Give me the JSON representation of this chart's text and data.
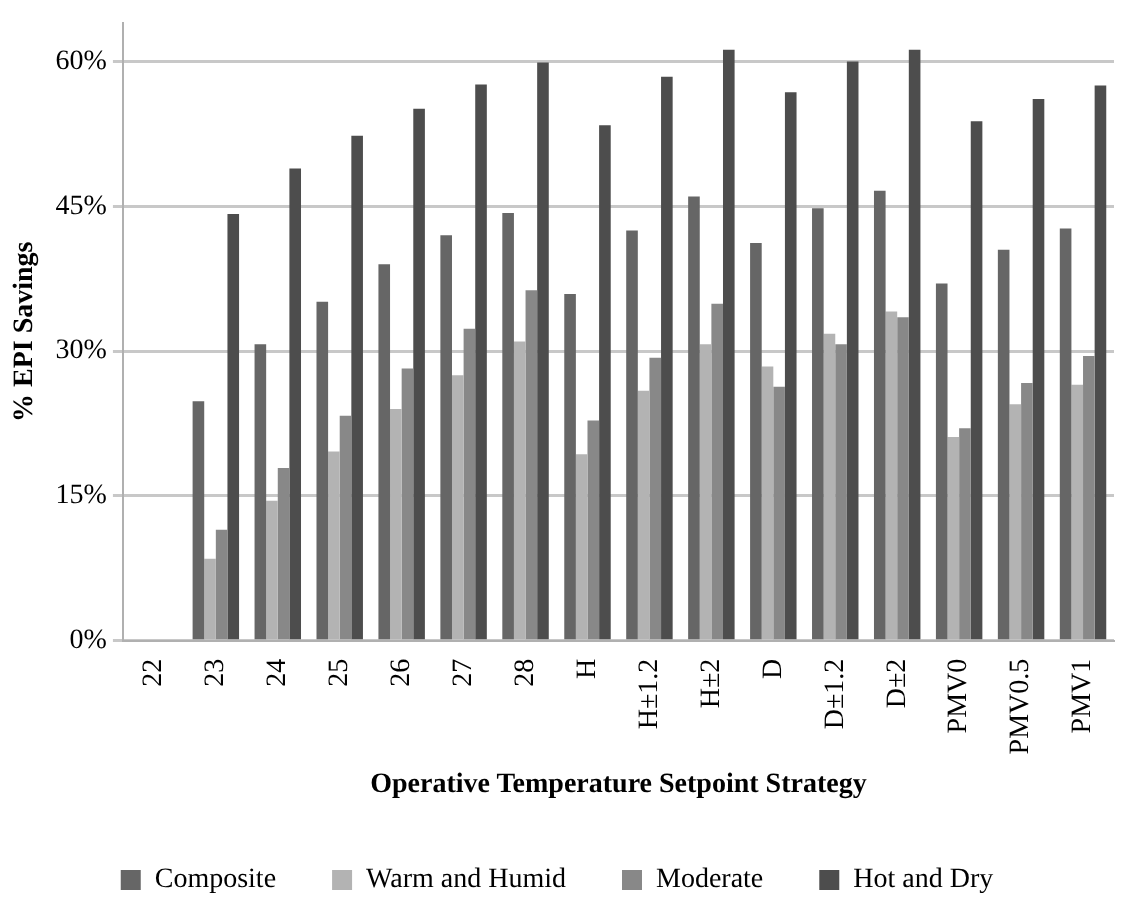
{
  "chart_data": {
    "type": "bar",
    "xlabel": "Operative Temperature Setpoint Strategy",
    "ylabel": "% EPI Savings",
    "categories": [
      "22",
      "23",
      "24",
      "25",
      "26",
      "27",
      "28",
      "H",
      "H±1.2",
      "H±2",
      "D",
      "D±1.2",
      "D±2",
      "PMV0",
      "PMV0.5",
      "PMV1"
    ],
    "series": [
      {
        "name": "Composite",
        "color": "#666666",
        "values": [
          0,
          24.8,
          30.7,
          35.1,
          39.0,
          42.0,
          44.3,
          35.9,
          42.5,
          46.0,
          41.2,
          44.8,
          46.6,
          37.0,
          40.5,
          42.7
        ]
      },
      {
        "name": "Warm and Humid",
        "color": "#b3b3b3",
        "values": [
          0,
          8.5,
          14.5,
          19.6,
          24.0,
          27.5,
          31.0,
          19.3,
          25.9,
          30.7,
          28.4,
          31.8,
          34.1,
          21.1,
          24.5,
          26.5
        ]
      },
      {
        "name": "Moderate",
        "color": "#888888",
        "values": [
          0,
          11.5,
          17.9,
          23.3,
          28.2,
          32.3,
          36.3,
          22.8,
          29.3,
          34.9,
          26.3,
          30.7,
          33.5,
          22.0,
          26.7,
          29.5
        ]
      },
      {
        "name": "Hot and Dry",
        "color": "#4d4d4d",
        "values": [
          0,
          44.2,
          48.9,
          52.3,
          55.1,
          57.6,
          59.9,
          53.4,
          58.4,
          61.2,
          56.8,
          60.0,
          61.2,
          53.8,
          56.1,
          57.5
        ]
      }
    ],
    "ylim": [
      0,
      64
    ],
    "yticks": [
      {
        "value": 0,
        "label": "0%"
      },
      {
        "value": 15,
        "label": "15%"
      },
      {
        "value": 30,
        "label": "30%"
      },
      {
        "value": 45,
        "label": "45%"
      },
      {
        "value": 60,
        "label": "60%"
      }
    ],
    "grid": "y",
    "legend": "bottom"
  }
}
